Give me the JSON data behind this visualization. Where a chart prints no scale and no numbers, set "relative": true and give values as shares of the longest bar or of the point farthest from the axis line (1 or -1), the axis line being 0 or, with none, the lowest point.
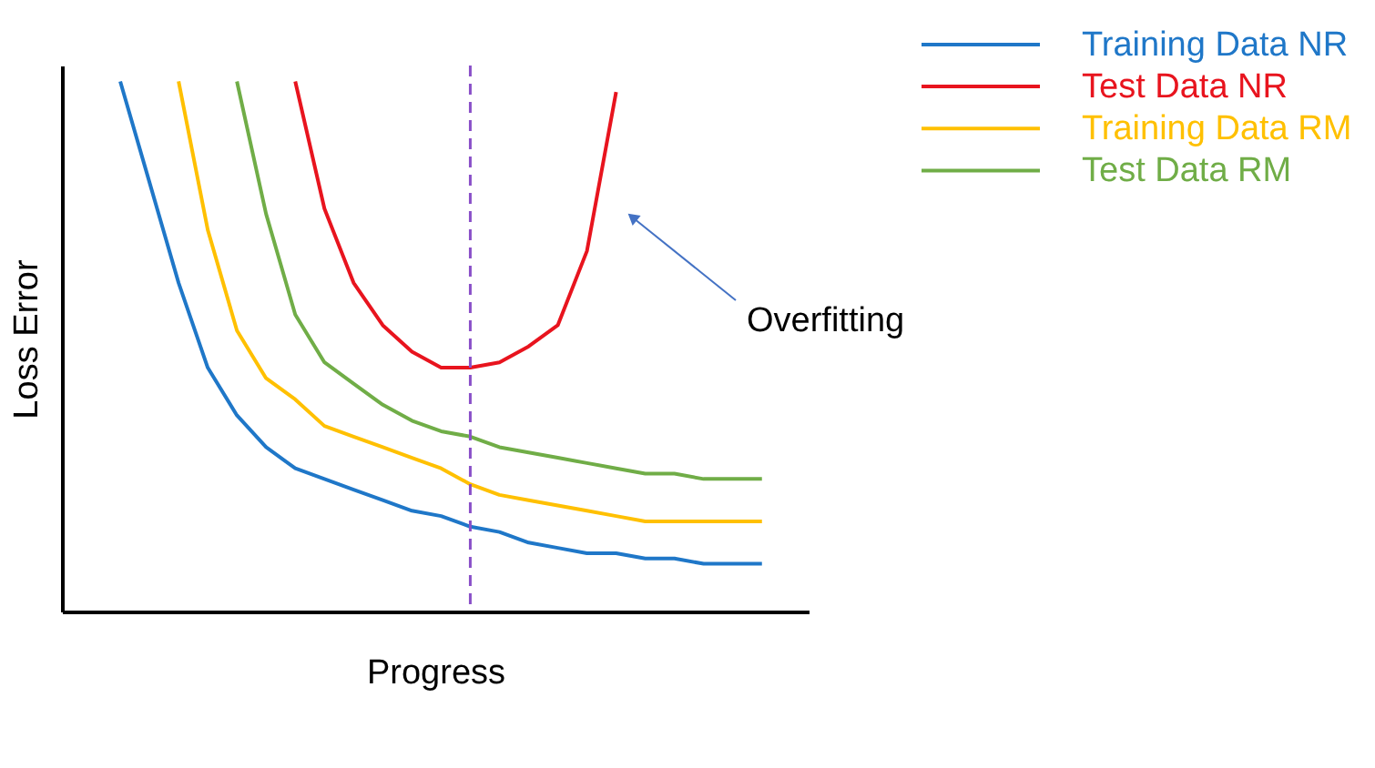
{
  "chart_data": {
    "type": "line",
    "relative": true,
    "xlabel": "Progress",
    "ylabel": "Loss Error",
    "legend": "top right",
    "line_style": "solid",
    "categories": [
      null,
      null,
      null,
      null,
      null,
      null,
      null,
      null,
      null,
      null,
      null,
      null,
      null,
      null,
      null,
      null,
      null,
      null,
      null,
      null,
      null,
      null,
      null
    ],
    "series": [
      {
        "name": "Training Data NR",
        "color": "#1f77c8",
        "values": [
          1.0,
          0.81,
          0.62,
          0.46,
          0.37,
          0.31,
          0.27,
          0.25,
          0.23,
          0.21,
          0.19,
          0.18,
          0.16,
          0.15,
          0.13,
          0.12,
          0.11,
          0.11,
          0.1,
          0.1,
          0.09,
          0.09,
          0.09
        ]
      },
      {
        "name": "Test Data NR",
        "color": "#e8141e",
        "values": [
          null,
          null,
          null,
          null,
          null,
          null,
          1.0,
          0.76,
          0.62,
          0.54,
          0.49,
          0.46,
          0.46,
          0.47,
          0.5,
          0.54,
          0.68,
          0.98,
          null,
          null,
          null,
          null,
          null
        ]
      },
      {
        "name": "Training Data RM",
        "color": "#ffc000",
        "values": [
          null,
          null,
          1.0,
          0.72,
          0.53,
          0.44,
          0.4,
          0.35,
          0.33,
          0.31,
          0.29,
          0.27,
          0.24,
          0.22,
          0.21,
          0.2,
          0.19,
          0.18,
          0.17,
          0.17,
          0.17,
          0.17,
          0.17
        ]
      },
      {
        "name": "Test Data RM",
        "color": "#70ad47",
        "values": [
          null,
          null,
          null,
          null,
          1.0,
          0.75,
          0.56,
          0.47,
          0.43,
          0.39,
          0.36,
          0.34,
          0.33,
          0.31,
          0.3,
          0.29,
          0.28,
          0.27,
          0.26,
          0.26,
          0.25,
          0.25,
          0.25
        ]
      }
    ],
    "annotations": [
      "Overfitting"
    ]
  }
}
